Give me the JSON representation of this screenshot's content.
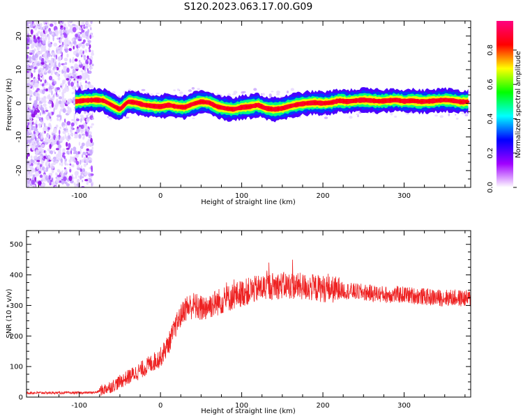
{
  "title": "S120.2023.063.17.00.G09",
  "chart_data": [
    {
      "type": "heatmap",
      "xlabel": "Height of straight line (km)",
      "ylabel": "Frequency (Hz)",
      "xlim": [
        -165,
        382
      ],
      "ylim": [
        -25,
        24.5
      ],
      "x_ticks": [
        -100,
        0,
        100,
        200,
        300
      ],
      "y_ticks": [
        -20,
        -10,
        0,
        10,
        20
      ],
      "colorbar": {
        "label": "Normalized spectral amplitude",
        "range": [
          0,
          0.97
        ],
        "ticks": [
          "0.0",
          "0.2",
          "0.4",
          "0.6",
          "0.8"
        ],
        "colormap": [
          "#ffffff",
          "#a000ff",
          "#0000ff",
          "#00ffff",
          "#00ff00",
          "#ffff00",
          "#ff0000",
          "#ff0080"
        ]
      },
      "ridge": {
        "name": "",
        "x": [
          -105,
          -95,
          -80,
          -70,
          -60,
          -50,
          -40,
          -30,
          -20,
          -10,
          0,
          10,
          20,
          30,
          40,
          50,
          60,
          70,
          80,
          90,
          100,
          110,
          120,
          130,
          140,
          150,
          160,
          170,
          180,
          190,
          200,
          210,
          220,
          230,
          240,
          250,
          260,
          270,
          280,
          290,
          300,
          310,
          320,
          330,
          340,
          350,
          360,
          370,
          380
        ],
        "y": [
          0.5,
          0.8,
          1.0,
          0.8,
          -0.5,
          -1.8,
          0.5,
          0.2,
          -0.5,
          -0.8,
          -1.0,
          -0.5,
          -1.0,
          -1.2,
          -0.2,
          0.5,
          0.2,
          -1.0,
          -1.5,
          -1.8,
          -1.2,
          -1.0,
          -0.5,
          -1.5,
          -1.8,
          -1.5,
          -0.8,
          -0.3,
          0.0,
          0.2,
          0.0,
          0.2,
          0.8,
          0.5,
          0.8,
          1.0,
          0.8,
          0.6,
          0.8,
          1.0,
          0.6,
          0.8,
          0.5,
          0.6,
          0.8,
          1.0,
          0.8,
          0.4,
          0.5
        ]
      }
    },
    {
      "type": "line",
      "xlabel": "Height of straight line (km)",
      "ylabel": "SNR (10 * v/v)",
      "xlim": [
        -165,
        382
      ],
      "ylim": [
        0,
        545
      ],
      "x_ticks": [
        -100,
        0,
        100,
        200,
        300
      ],
      "y_ticks": [
        0,
        100,
        200,
        300,
        400,
        500
      ],
      "color": "#ee2222",
      "series": [
        {
          "name": "",
          "trend_x": [
            -165,
            -100,
            -80,
            -60,
            -40,
            -20,
            0,
            10,
            20,
            30,
            40,
            50,
            60,
            80,
            100,
            120,
            140,
            160,
            180,
            200,
            220,
            240,
            260,
            280,
            300,
            320,
            340,
            360,
            382
          ],
          "trend_y": [
            14,
            14,
            15,
            35,
            65,
            95,
            130,
            175,
            240,
            290,
            300,
            290,
            300,
            320,
            340,
            355,
            365,
            365,
            360,
            355,
            350,
            345,
            340,
            335,
            335,
            330,
            325,
            325,
            322
          ]
        }
      ]
    }
  ]
}
